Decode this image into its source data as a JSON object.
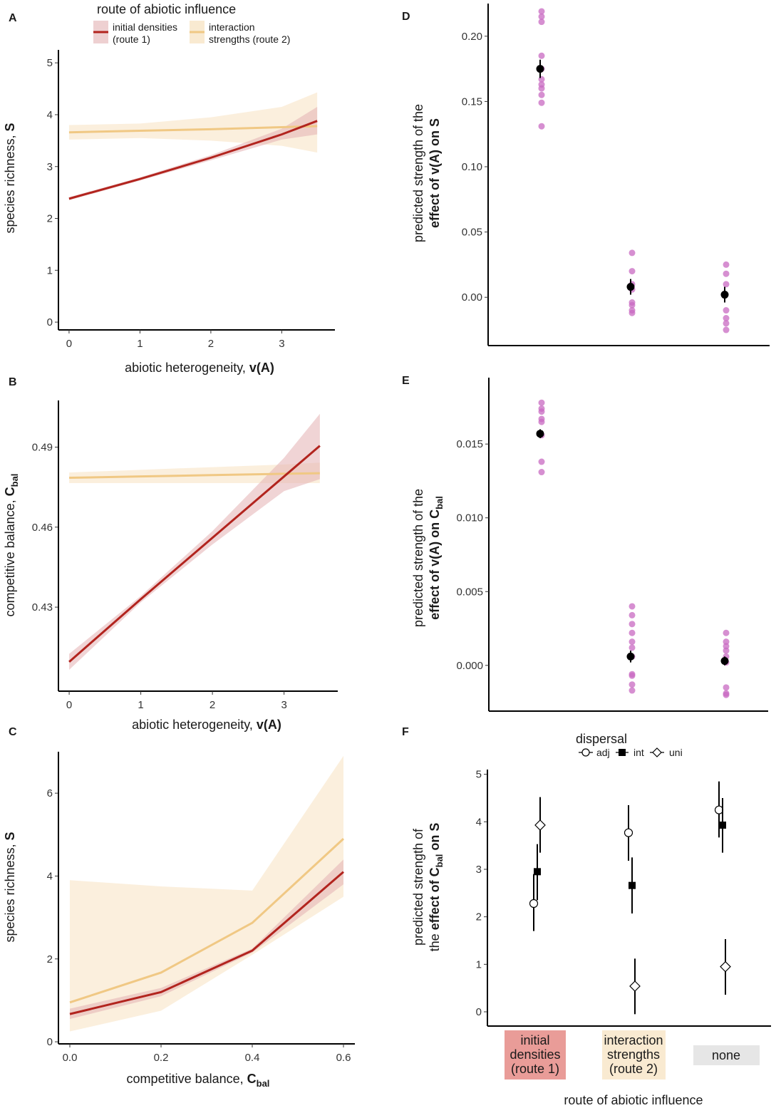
{
  "colors": {
    "route1": "#b2241e",
    "route2": "#f0c884",
    "route1_band": "#e3b0b2",
    "route2_band": "#f9ead1",
    "points": "#c86ac2",
    "mean": "#000000",
    "none_box": "#e6e6e6",
    "route1_box": "#e99c98",
    "route2_box": "#f9ead1"
  },
  "legend": {
    "title": "route of abiotic influence",
    "route1_line1": "initial densities",
    "route1_line2": "(route 1)",
    "route2_line1": "interaction",
    "route2_line2": "strengths (route 2)"
  },
  "chart_data": [
    {
      "panel": "A",
      "type": "line",
      "xlabel_main": "abiotic heterogeneity, ",
      "xlabel_bold": "v(A)",
      "ylabel_main": "species richness, ",
      "ylabel_bold": "S",
      "xlim": [
        -0.15,
        3.75
      ],
      "ylim": [
        -0.15,
        5.25
      ],
      "xticks": [
        0,
        1,
        2,
        3
      ],
      "xtick_labels": [
        "0",
        "1",
        "2",
        "3"
      ],
      "yticks": [
        0,
        1,
        2,
        3,
        4,
        5
      ],
      "ytick_labels": [
        "0",
        "1",
        "2",
        "3",
        "4",
        "5"
      ],
      "series": [
        {
          "name": "initial densities (route 1)",
          "x": [
            0,
            1,
            2,
            3,
            3.5
          ],
          "y": [
            2.38,
            2.76,
            3.17,
            3.62,
            3.88
          ],
          "lower": [
            2.35,
            2.73,
            3.12,
            3.52,
            3.62
          ],
          "upper": [
            2.41,
            2.79,
            3.22,
            3.73,
            4.15
          ]
        },
        {
          "name": "interaction strengths (route 2)",
          "x": [
            0,
            1,
            2,
            3,
            3.5
          ],
          "y": [
            3.66,
            3.69,
            3.72,
            3.76,
            3.78
          ],
          "lower": [
            3.52,
            3.55,
            3.5,
            3.4,
            3.27
          ],
          "upper": [
            3.8,
            3.83,
            3.95,
            4.15,
            4.43
          ]
        }
      ]
    },
    {
      "panel": "B",
      "type": "line",
      "xlabel_main": "abiotic heterogeneity, ",
      "xlabel_bold": "v(A)",
      "ylabel_main": "competitive balance, ",
      "ylabel_bold": "C",
      "ylabel_sub": "bal",
      "xlim": [
        -0.15,
        3.75
      ],
      "ylim": [
        0.3985,
        0.5075
      ],
      "xticks": [
        0,
        1,
        2,
        3
      ],
      "xtick_labels": [
        "0",
        "1",
        "2",
        "3"
      ],
      "yticks": [
        0.43,
        0.46,
        0.49
      ],
      "ytick_labels": [
        "0.43",
        "0.46",
        "0.49"
      ],
      "series": [
        {
          "name": "initial densities (route 1)",
          "x": [
            0,
            1,
            2,
            3,
            3.5
          ],
          "y": [
            0.4095,
            0.433,
            0.456,
            0.479,
            0.4905
          ],
          "lower": [
            0.4065,
            0.4318,
            0.4535,
            0.4735,
            0.478
          ],
          "upper": [
            0.4125,
            0.4342,
            0.4585,
            0.486,
            0.5025
          ]
        },
        {
          "name": "interaction strengths (route 2)",
          "x": [
            0,
            1,
            2,
            3,
            3.5
          ],
          "y": [
            0.4785,
            0.479,
            0.4795,
            0.48,
            0.4802
          ],
          "lower": [
            0.4765,
            0.4765,
            0.4765,
            0.4765,
            0.4765
          ],
          "upper": [
            0.4805,
            0.4815,
            0.4825,
            0.4835,
            0.4842
          ]
        }
      ]
    },
    {
      "panel": "C",
      "type": "line",
      "xlabel_main": "competitive balance, ",
      "xlabel_bold": "C",
      "xlabel_sub": "bal",
      "ylabel_main": "species richness, ",
      "ylabel_bold": "S",
      "xlim": [
        -0.025,
        0.625
      ],
      "ylim": [
        -0.05,
        7.0
      ],
      "xticks": [
        0,
        0.2,
        0.4,
        0.6
      ],
      "xtick_labels": [
        "0.0",
        "0.2",
        "0.4",
        "0.6"
      ],
      "yticks": [
        0,
        2,
        4,
        6
      ],
      "ytick_labels": [
        "0",
        "2",
        "4",
        "6"
      ],
      "series": [
        {
          "name": "initial densities (route 1)",
          "x": [
            0,
            0.2,
            0.4,
            0.6
          ],
          "y": [
            0.67,
            1.2,
            2.2,
            4.1
          ],
          "lower": [
            0.55,
            1.1,
            2.15,
            3.8
          ],
          "upper": [
            0.8,
            1.3,
            2.25,
            4.4
          ]
        },
        {
          "name": "interaction strengths (route 2)",
          "x": [
            0,
            0.2,
            0.4,
            0.6
          ],
          "y": [
            0.95,
            1.67,
            2.87,
            4.9
          ],
          "lower": [
            0.25,
            0.75,
            2.1,
            3.5
          ],
          "upper": [
            3.9,
            3.75,
            3.65,
            6.9
          ]
        }
      ]
    },
    {
      "panel": "D",
      "type": "scatter",
      "ylabel_line1": "predicted strength of the",
      "ylabel_bold": "effect of v(A) on S",
      "ylim": [
        -0.037,
        0.225
      ],
      "yticks": [
        0,
        0.05,
        0.1,
        0.15,
        0.2
      ],
      "ytick_labels": [
        "0.00",
        "0.05",
        "0.10",
        "0.15",
        "0.20"
      ],
      "categories": [
        "initial densities (route 1)",
        "interaction strengths (route 2)",
        "none"
      ],
      "points": [
        [
          0.131,
          0.149,
          0.155,
          0.16,
          0.163,
          0.167,
          0.175,
          0.185,
          0.211,
          0.215,
          0.219
        ],
        [
          -0.012,
          -0.01,
          -0.006,
          -0.004,
          0.006,
          0.01,
          0.02,
          0.034
        ],
        [
          -0.025,
          -0.02,
          -0.016,
          -0.01,
          0.01,
          0.018,
          0.025
        ]
      ],
      "means": [
        0.175,
        0.008,
        0.002
      ],
      "err_low": [
        0.168,
        0.002,
        -0.004
      ],
      "err_high": [
        0.182,
        0.014,
        0.008
      ]
    },
    {
      "panel": "E",
      "type": "scatter",
      "ylabel_line1": "predicted strength of the",
      "ylabel_bold": "effect of v(A) on C",
      "ylabel_sub": "bal",
      "ylim": [
        -0.0031,
        0.0195
      ],
      "yticks": [
        0,
        0.005,
        0.01,
        0.015
      ],
      "ytick_labels": [
        "0.000",
        "0.005",
        "0.010",
        "0.015"
      ],
      "categories": [
        "initial densities (route 1)",
        "interaction strengths (route 2)",
        "none"
      ],
      "points": [
        [
          0.0131,
          0.0138,
          0.0156,
          0.0165,
          0.0167,
          0.0172,
          0.0174,
          0.0178
        ],
        [
          -0.0017,
          -0.0013,
          -0.0007,
          -0.0006,
          0.0006,
          0.0012,
          0.0016,
          0.0022,
          0.0028,
          0.0034,
          0.004
        ],
        [
          -0.002,
          -0.0019,
          -0.0015,
          0.0002,
          0.0006,
          0.001,
          0.0013,
          0.0016,
          0.0022
        ]
      ],
      "means": [
        0.0157,
        0.0006,
        0.0003
      ],
      "err_low": [
        0.0154,
        0.0002,
        0.0
      ],
      "err_high": [
        0.016,
        0.001,
        0.0006
      ]
    },
    {
      "panel": "F",
      "type": "scatter",
      "xlabel": "route of abiotic influence",
      "ylabel_line1": "predicted strength of",
      "ylabel_pre": "the ",
      "ylabel_bold": "effect of C",
      "ylabel_sub": "bal",
      "ylabel_bold2": " on S",
      "ylim": [
        -0.3,
        5.1
      ],
      "yticks": [
        0,
        1,
        2,
        3,
        4,
        5
      ],
      "ytick_labels": [
        "0",
        "1",
        "2",
        "3",
        "4",
        "5"
      ],
      "category_labels": [
        [
          "initial",
          "densities",
          "(route 1)"
        ],
        [
          "interaction",
          "strengths",
          "(route 2)"
        ],
        [
          "none"
        ]
      ],
      "legend_title": "dispersal",
      "legend_labels": [
        "adj",
        "int",
        "uni"
      ],
      "series": [
        {
          "name": "adj",
          "shape": "circle",
          "values": [
            2.28,
            3.77,
            4.25
          ],
          "lower": [
            1.7,
            3.18,
            3.67
          ],
          "upper": [
            2.9,
            4.35,
            4.85
          ]
        },
        {
          "name": "int",
          "shape": "square",
          "values": [
            2.95,
            2.66,
            3.93
          ],
          "lower": [
            2.35,
            2.07,
            3.35
          ],
          "upper": [
            3.53,
            3.25,
            4.5
          ]
        },
        {
          "name": "uni",
          "shape": "diamond",
          "values": [
            3.93,
            0.54,
            0.95
          ],
          "lower": [
            3.35,
            -0.05,
            0.36
          ],
          "upper": [
            4.52,
            1.12,
            1.53
          ]
        }
      ]
    }
  ]
}
